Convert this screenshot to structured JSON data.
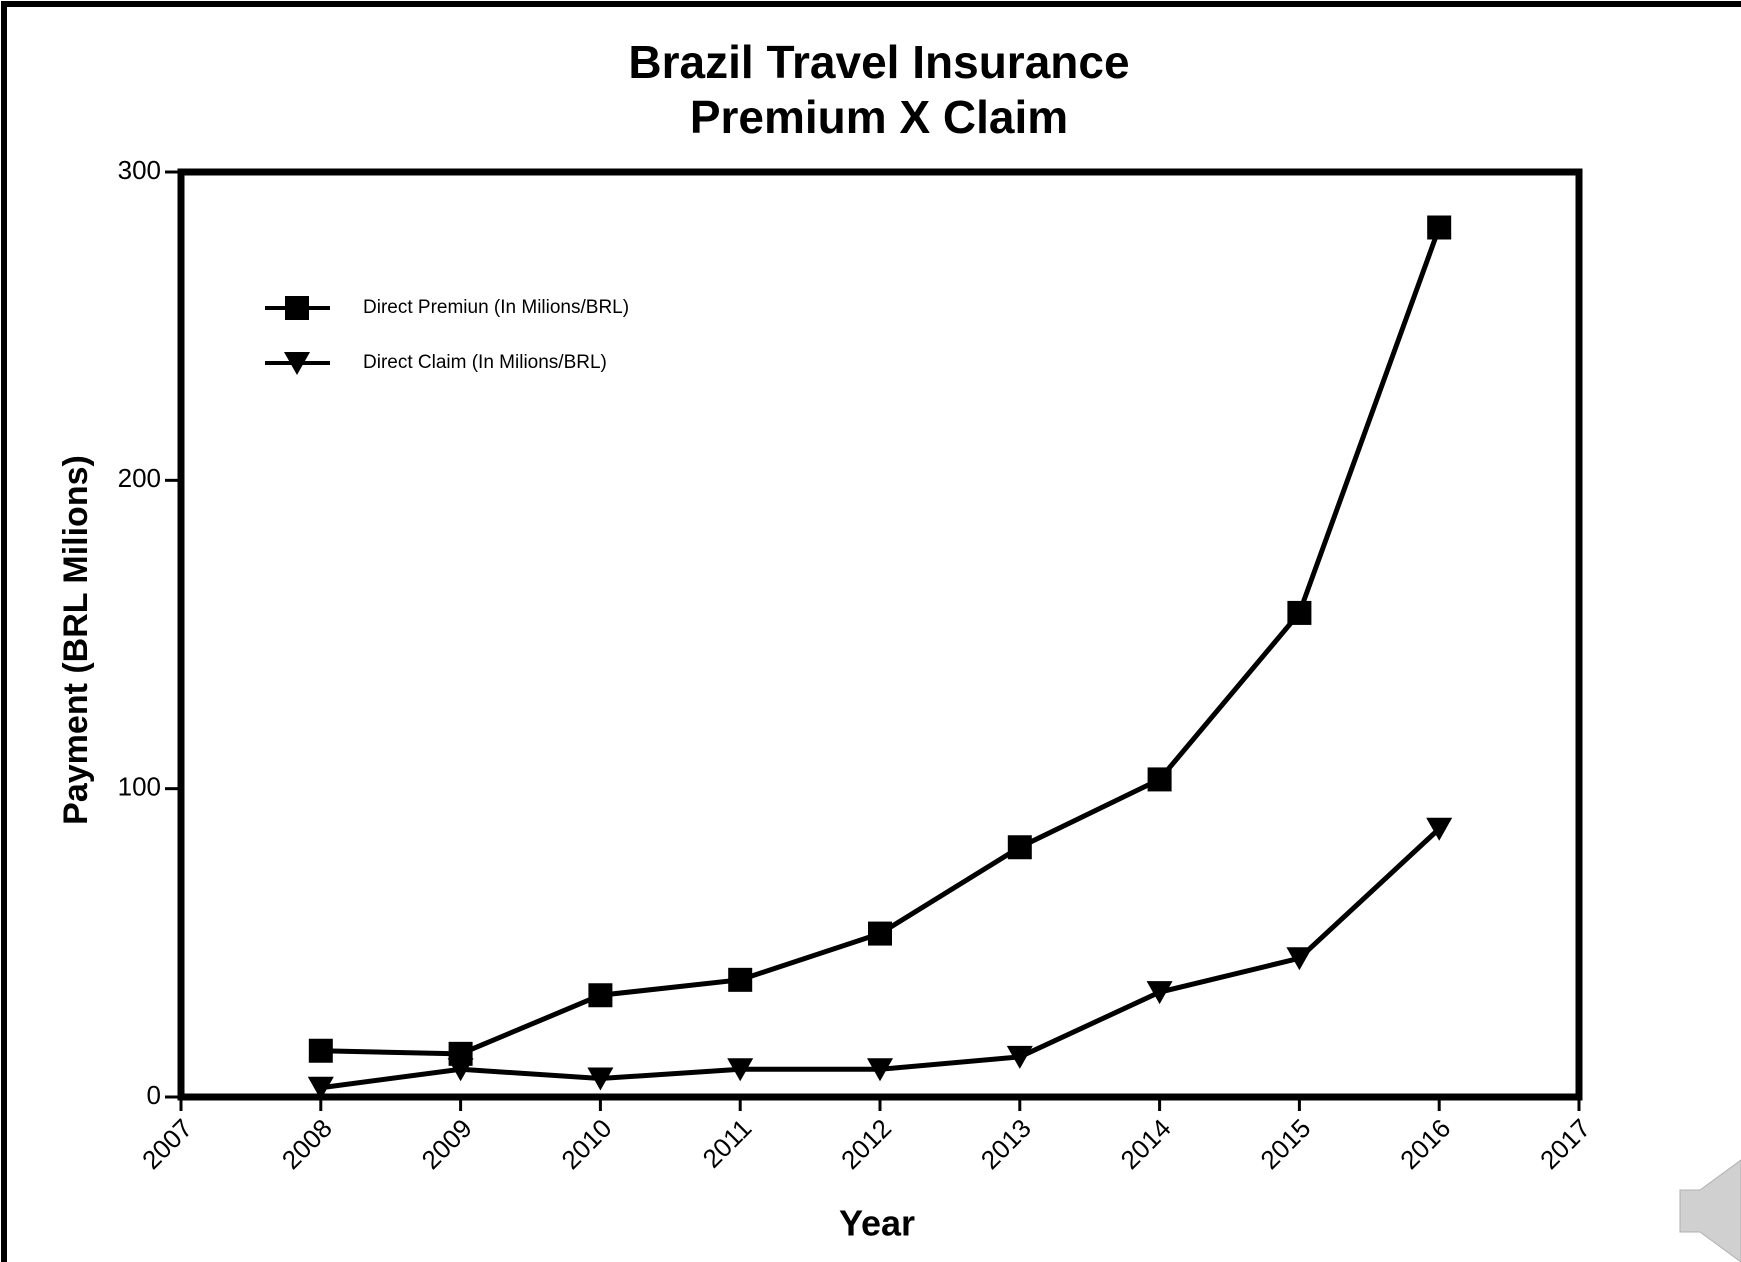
{
  "chart_data": {
    "type": "line",
    "title": "Brazil Travel Insurance",
    "subtitle": "Premium X Claim",
    "x_label": "Year",
    "y_label": "Payment (BRL Milions)",
    "x": [
      2008,
      2009,
      2010,
      2011,
      2012,
      2013,
      2014,
      2015,
      2016
    ],
    "series": [
      {
        "name": "Direct Premiun (In Milions/BRL)",
        "color": "#000000",
        "marker": "square",
        "values": [
          15,
          14,
          33,
          38,
          53,
          81,
          103,
          157,
          282
        ]
      },
      {
        "name": "Direct Claim (In Milions/BRL)",
        "color": "#000000",
        "marker": "triangle-down",
        "values": [
          3,
          9,
          6,
          9,
          9,
          13,
          34,
          45,
          87
        ]
      }
    ],
    "xlim": [
      2007,
      2017
    ],
    "xticks": [
      2007,
      2008,
      2009,
      2010,
      2011,
      2012,
      2013,
      2014,
      2015,
      2016,
      2017
    ],
    "ylim": [
      0,
      300
    ],
    "yticks": [
      0,
      100,
      200,
      300
    ],
    "grid": false,
    "legend": "upper left"
  }
}
